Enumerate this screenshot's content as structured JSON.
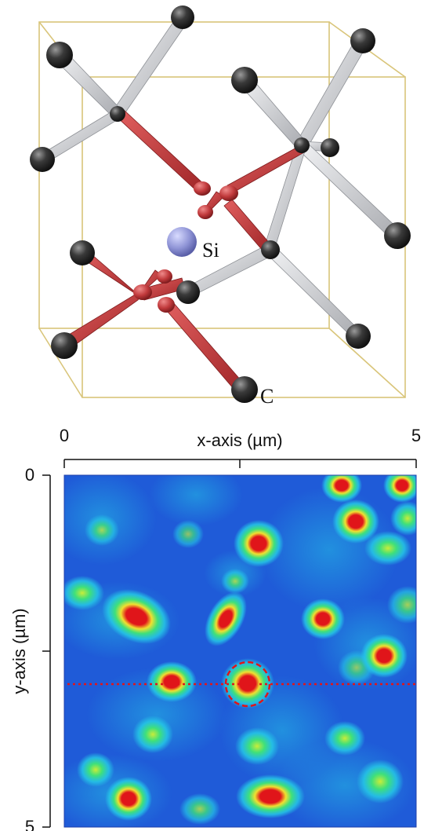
{
  "crystal": {
    "labels": {
      "si": "Si",
      "c": "C"
    },
    "colors": {
      "box": "#d9c57a",
      "carbon_atom": "#3a3a3a",
      "silicon_atom": "#8f94d6",
      "bond_highlight": "#c0393b",
      "bond_neutral": "#c9cbd0"
    }
  },
  "scan": {
    "x_axis": {
      "label": "x-axis (µm)",
      "min_label": "0",
      "max_label": "5"
    },
    "y_axis": {
      "label": "y-axis (µm)",
      "min_label": "0",
      "max_label": "5"
    },
    "colors": {
      "background": "#1f5bd8",
      "low": "#25c7e6",
      "mid": "#3fe07a",
      "high": "#f0e030",
      "peak": "#e0151a",
      "marker": "#e0151a"
    }
  }
}
